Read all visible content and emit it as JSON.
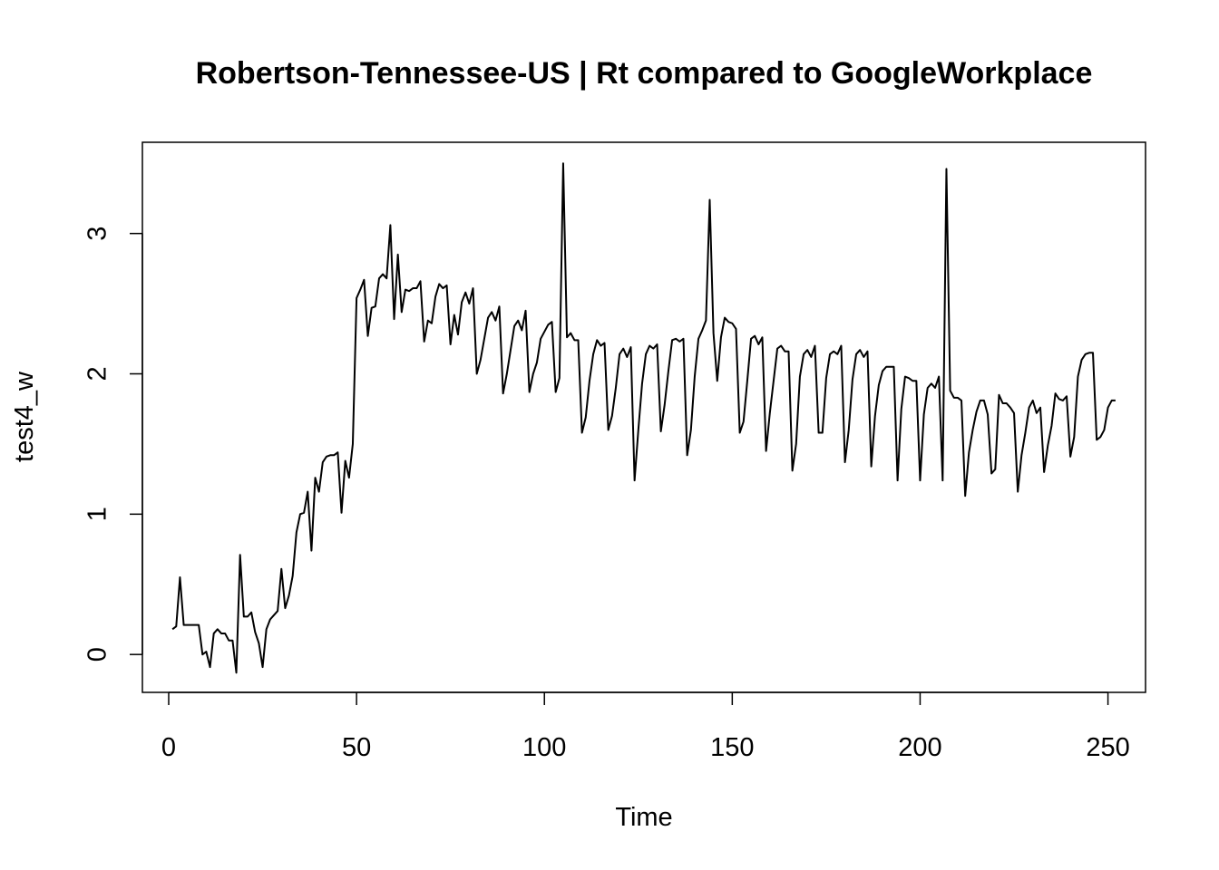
{
  "chart_data": {
    "type": "line",
    "title": "Robertson-Tennessee-US | Rt compared to GoogleWorkplace",
    "xlabel": "Time",
    "ylabel": "test4_w",
    "xlim": [
      -7,
      260
    ],
    "ylim": [
      -0.27,
      3.65
    ],
    "xticks": [
      0,
      50,
      100,
      150,
      200,
      250
    ],
    "yticks": [
      0,
      1,
      2,
      3
    ],
    "grid": false,
    "legend": "none",
    "series": [
      {
        "color": "#000000",
        "x_start": 1,
        "values": [
          0.18,
          0.2,
          0.55,
          0.21,
          0.21,
          0.21,
          0.21,
          0.21,
          0.0,
          0.02,
          -0.09,
          0.15,
          0.18,
          0.15,
          0.15,
          0.1,
          0.1,
          -0.13,
          0.71,
          0.27,
          0.27,
          0.3,
          0.16,
          0.08,
          -0.09,
          0.18,
          0.25,
          0.28,
          0.31,
          0.61,
          0.33,
          0.42,
          0.56,
          0.87,
          1.0,
          1.01,
          1.16,
          0.74,
          1.26,
          1.16,
          1.37,
          1.41,
          1.42,
          1.42,
          1.44,
          1.01,
          1.38,
          1.26,
          1.5,
          2.54,
          2.6,
          2.67,
          2.27,
          2.47,
          2.48,
          2.68,
          2.71,
          2.68,
          3.06,
          2.39,
          2.85,
          2.44,
          2.6,
          2.59,
          2.61,
          2.61,
          2.66,
          2.23,
          2.38,
          2.36,
          2.55,
          2.64,
          2.61,
          2.63,
          2.21,
          2.42,
          2.28,
          2.51,
          2.58,
          2.5,
          2.61,
          2.0,
          2.1,
          2.25,
          2.4,
          2.44,
          2.38,
          2.48,
          1.86,
          2.0,
          2.17,
          2.34,
          2.38,
          2.31,
          2.45,
          1.87,
          2.0,
          2.08,
          2.25,
          2.3,
          2.35,
          2.37,
          1.87,
          1.97,
          3.5,
          2.26,
          2.29,
          2.24,
          2.24,
          1.58,
          1.69,
          1.95,
          2.14,
          2.24,
          2.2,
          2.22,
          1.6,
          1.7,
          1.9,
          2.14,
          2.18,
          2.12,
          2.19,
          1.24,
          1.6,
          1.93,
          2.14,
          2.2,
          2.18,
          2.21,
          1.59,
          1.78,
          2.02,
          2.24,
          2.25,
          2.23,
          2.25,
          1.42,
          1.6,
          1.98,
          2.25,
          2.31,
          2.38,
          3.24,
          2.29,
          1.95,
          2.26,
          2.4,
          2.37,
          2.36,
          2.32,
          1.58,
          1.66,
          1.95,
          2.25,
          2.27,
          2.21,
          2.26,
          1.45,
          1.72,
          1.95,
          2.18,
          2.2,
          2.16,
          2.16,
          1.31,
          1.5,
          1.98,
          2.14,
          2.17,
          2.12,
          2.2,
          1.58,
          1.58,
          1.97,
          2.14,
          2.16,
          2.14,
          2.2,
          1.37,
          1.6,
          1.96,
          2.14,
          2.17,
          2.12,
          2.16,
          1.34,
          1.7,
          1.92,
          2.02,
          2.05,
          2.05,
          2.05,
          1.24,
          1.75,
          1.98,
          1.97,
          1.95,
          1.95,
          1.24,
          1.71,
          1.9,
          1.93,
          1.9,
          1.98,
          1.24,
          3.46,
          1.88,
          1.83,
          1.83,
          1.81,
          1.13,
          1.44,
          1.6,
          1.73,
          1.81,
          1.81,
          1.71,
          1.29,
          1.32,
          1.85,
          1.79,
          1.79,
          1.76,
          1.72,
          1.16,
          1.42,
          1.58,
          1.76,
          1.81,
          1.72,
          1.76,
          1.3,
          1.49,
          1.63,
          1.86,
          1.82,
          1.81,
          1.84,
          1.41,
          1.55,
          1.98,
          2.1,
          2.14,
          2.15,
          2.15,
          1.53,
          1.55,
          1.6,
          1.76,
          1.81,
          1.81
        ]
      }
    ]
  }
}
